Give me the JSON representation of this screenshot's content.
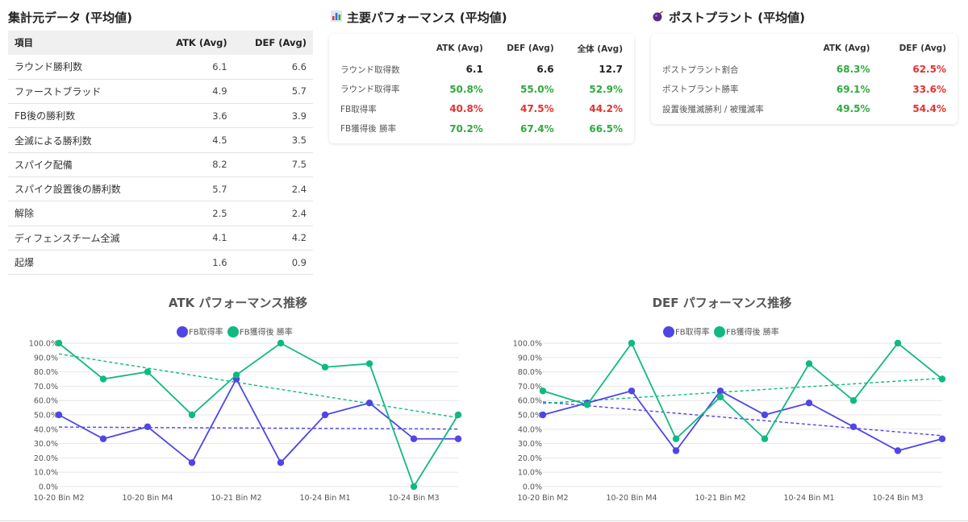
{
  "source_table": {
    "title": "集計元データ (平均値)",
    "headers": [
      "項目",
      "ATK (Avg)",
      "DEF (Avg)"
    ],
    "rows": [
      [
        "ラウンド勝利数",
        "6.1",
        "6.6"
      ],
      [
        "ファーストブラッド",
        "4.9",
        "5.7"
      ],
      [
        "FB後の勝利数",
        "3.6",
        "3.9"
      ],
      [
        "全滅による勝利数",
        "4.5",
        "3.5"
      ],
      [
        "スパイク配備",
        "8.2",
        "7.5"
      ],
      [
        "スパイク設置後の勝利数",
        "5.7",
        "2.4"
      ],
      [
        "解除",
        "2.5",
        "2.4"
      ],
      [
        "ディフェンスチーム全滅",
        "4.1",
        "4.2"
      ],
      [
        "起爆",
        "1.6",
        "0.9"
      ]
    ]
  },
  "performance": {
    "icon": "bar-chart-icon",
    "title": "主要パフォーマンス (平均値)",
    "headers": [
      "",
      "ATK (Avg)",
      "DEF (Avg)",
      "全体 (Avg)"
    ],
    "rows": [
      {
        "label": "ラウンド取得数",
        "values": [
          "6.1",
          "6.6",
          "12.7"
        ],
        "colors": [
          "k",
          "k",
          "k"
        ]
      },
      {
        "label": "ラウンド取得率",
        "values": [
          "50.8%",
          "55.0%",
          "52.9%"
        ],
        "colors": [
          "g",
          "g",
          "g"
        ]
      },
      {
        "label": "FB取得率",
        "values": [
          "40.8%",
          "47.5%",
          "44.2%"
        ],
        "colors": [
          "r",
          "r",
          "r"
        ]
      },
      {
        "label": "FB獲得後 勝率",
        "values": [
          "70.2%",
          "67.4%",
          "66.5%"
        ],
        "colors": [
          "g",
          "g",
          "g"
        ]
      }
    ]
  },
  "postplant": {
    "icon": "bomb-icon",
    "title": "ポストプラント (平均値)",
    "headers": [
      "",
      "ATK (Avg)",
      "DEF (Avg)"
    ],
    "rows": [
      {
        "label": "ポストプラント割合",
        "values": [
          "68.3%",
          "62.5%"
        ],
        "colors": [
          "g",
          "r"
        ]
      },
      {
        "label": "ポストプラント勝率",
        "values": [
          "69.1%",
          "33.6%"
        ],
        "colors": [
          "g",
          "r"
        ]
      },
      {
        "label": "設置後殲滅勝利 / 被殲滅率",
        "values": [
          "49.5%",
          "54.4%"
        ],
        "colors": [
          "g",
          "r"
        ]
      }
    ]
  },
  "chart_data": [
    {
      "type": "line",
      "title": "ATK パフォーマンス推移",
      "x_tick_labels": [
        "10-20 Bin M2",
        "10-20 Bin M4",
        "10-21 Bin M2",
        "10-24 Bin M1",
        "10-24 Bin M3"
      ],
      "num_points": 10,
      "ylim": [
        0,
        100
      ],
      "y_ticks": [
        "0.0%",
        "10.0%",
        "20.0%",
        "30.0%",
        "40.0%",
        "50.0%",
        "60.0%",
        "70.0%",
        "80.0%",
        "90.0%",
        "100.0%"
      ],
      "series": [
        {
          "name": "FB取得率",
          "color": "#4f46e5",
          "values": [
            50,
            33.3,
            41.7,
            16.7,
            75,
            16.7,
            50,
            58.3,
            33.3,
            33.3
          ],
          "trend": [
            41.5,
            40.1
          ]
        },
        {
          "name": "FB獲得後 勝率",
          "color": "#10b981",
          "values": [
            100,
            75,
            80,
            50,
            77.8,
            100,
            83.3,
            85.7,
            0,
            50
          ],
          "trend": [
            92.5,
            48
          ]
        }
      ]
    },
    {
      "type": "line",
      "title": "DEF パフォーマンス推移",
      "x_tick_labels": [
        "10-20 Bin M2",
        "10-20 Bin M4",
        "10-21 Bin M2",
        "10-24 Bin M1",
        "10-24 Bin M3"
      ],
      "num_points": 10,
      "ylim": [
        0,
        100
      ],
      "y_ticks": [
        "0.0%",
        "10.0%",
        "20.0%",
        "30.0%",
        "40.0%",
        "50.0%",
        "60.0%",
        "70.0%",
        "80.0%",
        "90.0%",
        "100.0%"
      ],
      "series": [
        {
          "name": "FB取得率",
          "color": "#4f46e5",
          "values": [
            50,
            58.3,
            66.7,
            25,
            66.7,
            50,
            58.3,
            41.7,
            25,
            33.3
          ],
          "trend": [
            59,
            35.5
          ]
        },
        {
          "name": "FB獲得後 勝率",
          "color": "#10b981",
          "values": [
            66.7,
            57.1,
            100,
            33.3,
            62.5,
            33.3,
            85.7,
            60,
            100,
            75
          ],
          "trend": [
            58,
            75.5
          ]
        }
      ]
    }
  ]
}
